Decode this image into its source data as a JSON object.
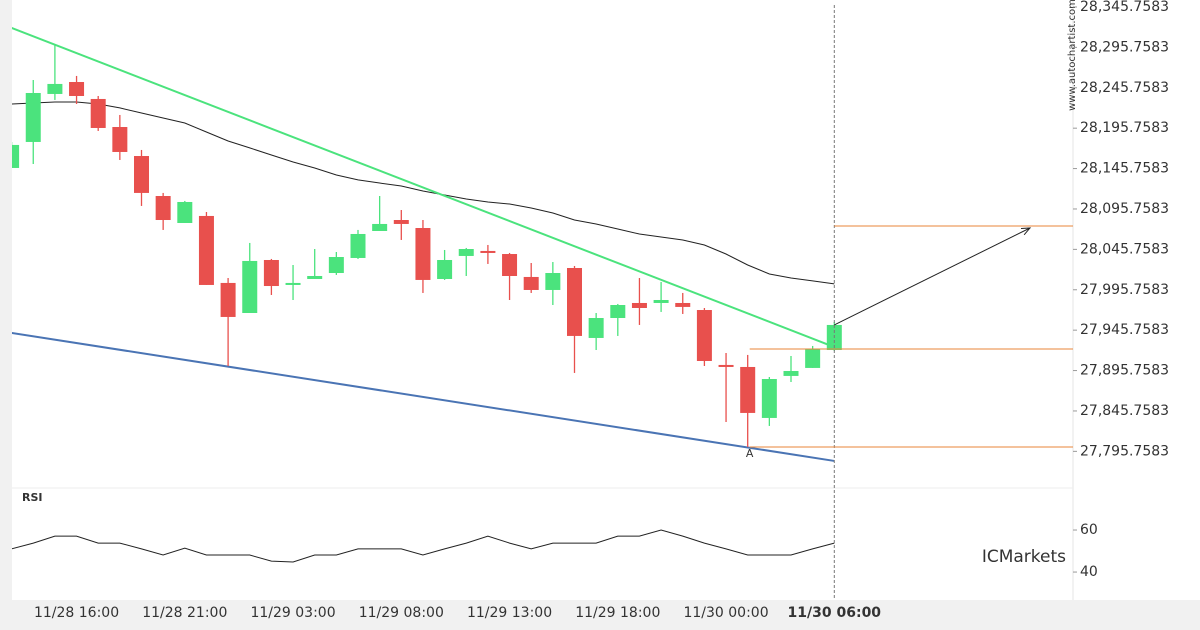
{
  "chart_data": {
    "type": "candlestick",
    "categories": [
      null,
      null,
      null,
      "11/28 16:00",
      null,
      null,
      null,
      null,
      "11/28 21:00",
      null,
      null,
      null,
      null,
      "11/29 03:00",
      null,
      null,
      null,
      null,
      "11/29 08:00",
      null,
      null,
      null,
      null,
      "11/29 13:00",
      null,
      null,
      null,
      null,
      "11/29 18:00",
      null,
      null,
      null,
      null,
      "11/30 00:00",
      null,
      null,
      null,
      null,
      "11/30 06:00"
    ],
    "open": [
      28146.5,
      28178.7,
      28238.1,
      28252.9,
      28231.9,
      28197.2,
      28161.3,
      28111.8,
      28078.4,
      28087.1,
      28004.2,
      27967.0,
      28032.6,
      28001.7,
      28009.1,
      28016.5,
      28035.1,
      28068.5,
      28082.1,
      28072.2,
      28009.1,
      28037.6,
      28043.8,
      28040.0,
      28011.6,
      27995.5,
      28022.7,
      27936.1,
      27960.8,
      27979.4,
      27979.4,
      27979.4,
      27970.7,
      27902.7,
      27900.2,
      27837.1,
      27889.1,
      27899.0,
      27921.2
    ],
    "high": [
      28178.7,
      28255.4,
      28298.7,
      28260.4,
      28235.6,
      28212.1,
      28168.8,
      28115.6,
      28105.7,
      28092.0,
      28010.3,
      28053.7,
      28033.9,
      28026.4,
      28046.2,
      28042.5,
      28069.8,
      28111.8,
      28094.5,
      28082.1,
      28045.0,
      28047.5,
      28051.2,
      28041.3,
      28028.9,
      28030.1,
      28025.2,
      27967.0,
      27978.2,
      28010.3,
      28005.4,
      27991.8,
      27973.2,
      27917.5,
      27915.1,
      27887.8,
      27913.8,
      27926.2,
      27955.9
    ],
    "low": [
      28146.5,
      28151.4,
      28230.7,
      28225.7,
      28192.3,
      28156.4,
      28099.5,
      28069.8,
      28078.4,
      28001.7,
      27901.4,
      27967.0,
      27989.3,
      27983.1,
      28009.1,
      28014.1,
      28033.9,
      28068.5,
      28057.4,
      27991.8,
      28007.9,
      28012.8,
      28027.7,
      27983.1,
      27991.8,
      27976.9,
      27892.8,
      27921.2,
      27938.6,
      27952.2,
      27968.3,
      27965.8,
      27901.4,
      27832.1,
      27801.2,
      27827.2,
      27881.6,
      27899.0,
      27920.0
    ],
    "close": [
      28175.0,
      28239.3,
      28250.5,
      28235.6,
      28196.0,
      28166.3,
      28115.6,
      28082.1,
      28104.4,
      28001.7,
      27962.1,
      28031.4,
      28000.4,
      28004.2,
      28012.8,
      28036.3,
      28064.8,
      28077.2,
      28077.2,
      28007.9,
      28032.6,
      28046.2,
      28041.3,
      28012.8,
      27995.5,
      28016.5,
      27938.6,
      27960.8,
      27976.9,
      27973.2,
      27983.1,
      27974.5,
      27907.6,
      27900.2,
      27843.3,
      27885.3,
      27895.2,
      27922.5,
      27952.2
    ],
    "up_color": "#4be37d",
    "down_color": "#e8504d",
    "ma": {
      "color": "#222222",
      "values": [
        28225.7,
        28226.9,
        28228.2,
        28228.2,
        28225.7,
        28220.8,
        28214.6,
        28208.4,
        28202.2,
        28191.0,
        28179.9,
        28171.3,
        28162.6,
        28153.9,
        28146.5,
        28137.8,
        28131.7,
        28127.9,
        28124.2,
        28118.0,
        28113.1,
        28108.1,
        28104.4,
        28101.9,
        28097.0,
        28090.8,
        28082.1,
        28077.2,
        28071.0,
        28064.8,
        28061.1,
        28057.4,
        28051.2,
        28040.0,
        28026.4,
        28015.3,
        28010.3,
        28006.7,
        28003.0
      ]
    },
    "trendlines": [
      {
        "color": "#4be37d",
        "values": [
          28319.8,
          27924.9
        ]
      },
      {
        "color": "#4a74b4",
        "values": [
          27942.3,
          27783.9
        ]
      }
    ],
    "levels": {
      "color": "#e8863a",
      "values": [
        28074.7,
        27922.5,
        27801.2
      ]
    },
    "arrow": {
      "color": "#222222",
      "values": [
        27952.2,
        28072.2
      ]
    },
    "annotation": {
      "text": "A",
      "index": 34,
      "value": 27801.2,
      "color": "#e8863a"
    },
    "ylim": [
      27750.4,
      28354.4
    ],
    "yticks": [
      {
        "value": 28345.7583,
        "label": "28,345.7583"
      },
      {
        "value": 28295.7583,
        "label": "28,295.7583"
      },
      {
        "value": 28245.7583,
        "label": "28,245.7583"
      },
      {
        "value": 28195.7583,
        "label": "28,195.7583"
      },
      {
        "value": 28145.7583,
        "label": "28,145.7583"
      },
      {
        "value": 28095.7583,
        "label": "28,095.7583"
      },
      {
        "value": 28045.7583,
        "label": "28,045.7583"
      },
      {
        "value": 27995.7583,
        "label": "27,995.7583"
      },
      {
        "value": 27945.7583,
        "label": "27,945.7583"
      },
      {
        "value": 27895.7583,
        "label": "27,895.7583"
      },
      {
        "value": 27845.7583,
        "label": "27,845.7583"
      },
      {
        "value": 27795.7583,
        "label": "27,795.7583"
      }
    ],
    "rsi": {
      "title": "RSI",
      "color": "#222222",
      "values": [
        51.0,
        53.8,
        57.1,
        57.1,
        53.8,
        53.8,
        51.0,
        48.1,
        51.4,
        48.1,
        48.1,
        48.1,
        45.2,
        44.8,
        48.1,
        48.1,
        51.0,
        51.0,
        51.0,
        48.1,
        51.0,
        53.8,
        57.1,
        53.8,
        51.0,
        53.8,
        53.8,
        53.8,
        57.1,
        57.1,
        60.0,
        57.1,
        53.8,
        51.0,
        48.1,
        48.1,
        48.1,
        51.0,
        53.8
      ],
      "ylim": [
        26.7,
        80
      ],
      "yticks": [
        40,
        60
      ]
    },
    "watermark": "www.autochartist.com",
    "logo": "ICMarkets"
  }
}
